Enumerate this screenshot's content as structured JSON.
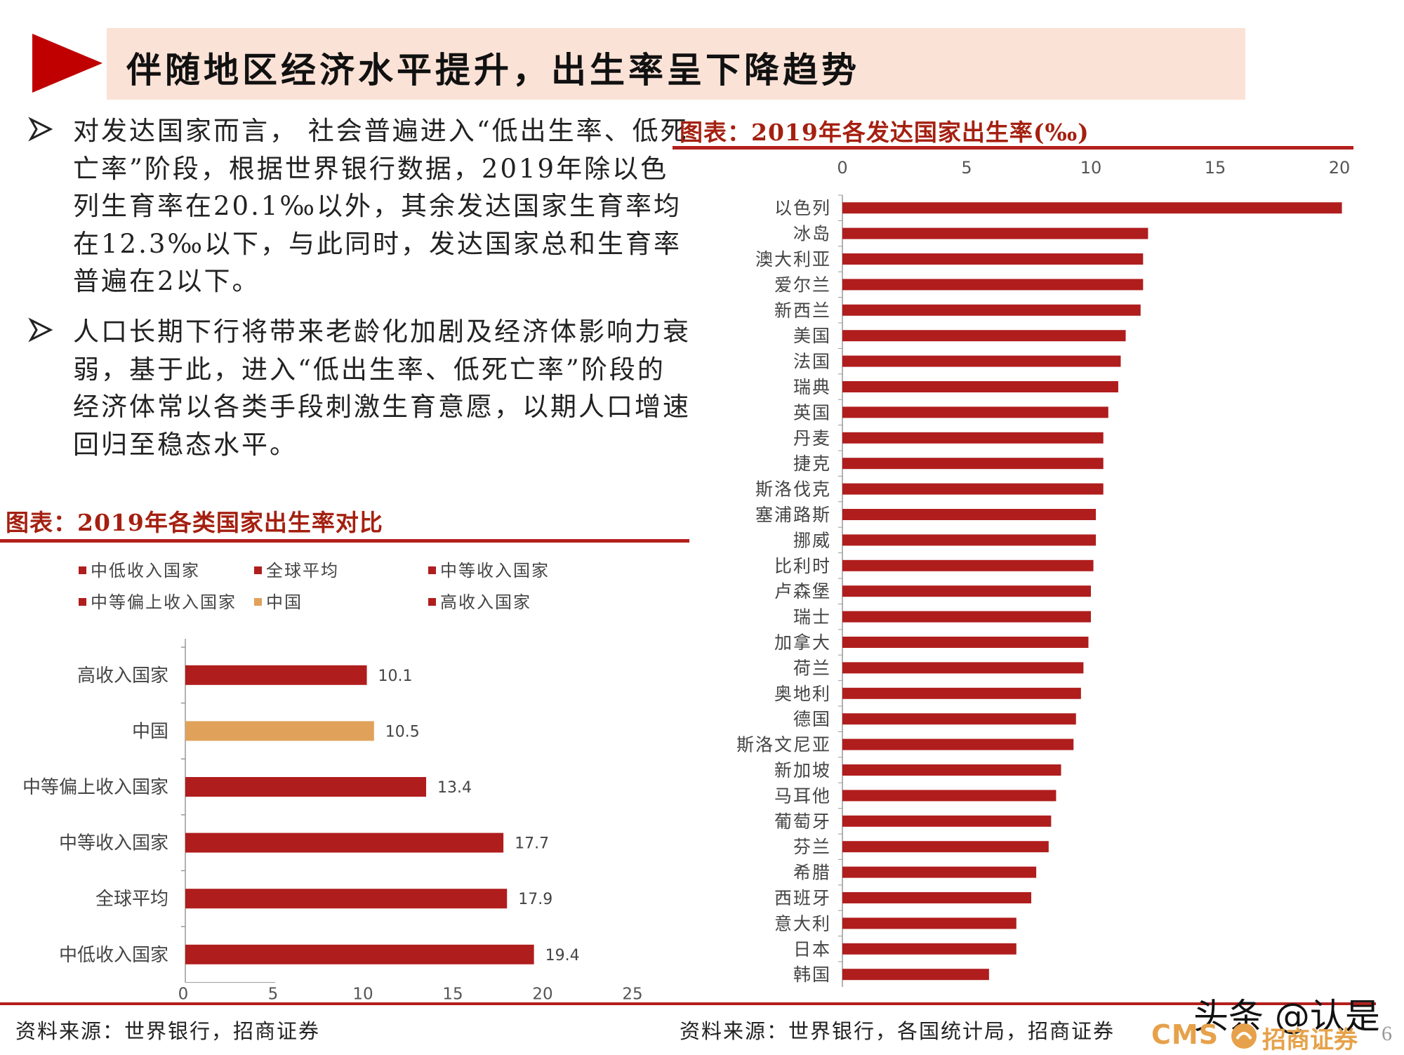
{
  "page": {
    "title": "伴随地区经济水平提升，出生率呈下降趋势",
    "bullets": [
      "对发达国家而言， 社会普遍进入“低出生率、低死亡率”阶段，根据世界银行数据，2019年除以色列生育率在20.1‰以外，其余发达国家生育率均在12.3‰以下，与此同时，发达国家总和生育率普遍在2以下。",
      "人口长期下行将带来老龄化加剧及经济体影响力衰弱，基于此，进入“低出生率、低死亡率”阶段的经济体常以各类手段刺激生育意愿，以期人口增速回归至稳态水平。"
    ],
    "page_number": "6",
    "watermark": "头条 @认是",
    "logo_text": "CMS",
    "logo_cn": "招商证券"
  },
  "colors": {
    "bar_red": "#b01d1d",
    "china_orange": "#e0a25a",
    "accent": "#b3201c",
    "band": "#fbe2d6"
  },
  "chart_data": [
    {
      "type": "bar",
      "orientation": "horizontal",
      "title": "图表：2019年各类国家出生率对比",
      "source": "资料来源：世界银行，招商证券",
      "legend": [
        "中低收入国家",
        "全球平均",
        "中等收入国家",
        "中等偏上收入国家",
        "中国",
        "高收入国家"
      ],
      "categories": [
        "高收入国家",
        "中国",
        "中等偏上收入国家",
        "中等收入国家",
        "全球平均",
        "中低收入国家"
      ],
      "values": [
        10.1,
        10.5,
        13.4,
        17.7,
        17.9,
        19.4
      ],
      "value_labels": [
        "10.1",
        "10.5",
        "13.4",
        "17.7",
        "17.9",
        "19.4"
      ],
      "highlight": "中国",
      "xlim": [
        0,
        25
      ],
      "xticks": [
        "0",
        "5",
        "10",
        "15",
        "20",
        "25"
      ],
      "data_labels": true
    },
    {
      "type": "bar",
      "orientation": "horizontal",
      "title": "图表：2019年各发达国家出生率(‰)",
      "source": "资料来源：世界银行，各国统计局，招商证券",
      "categories": [
        "以色列",
        "冰岛",
        "澳大利亚",
        "爱尔兰",
        "新西兰",
        "美国",
        "法国",
        "瑞典",
        "英国",
        "丹麦",
        "捷克",
        "斯洛伐克",
        "塞浦路斯",
        "挪威",
        "比利时",
        "卢森堡",
        "瑞士",
        "加拿大",
        "荷兰",
        "奥地利",
        "德国",
        "斯洛文尼亚",
        "新加坡",
        "马耳他",
        "葡萄牙",
        "芬兰",
        "希腊",
        "西班牙",
        "意大利",
        "日本",
        "韩国"
      ],
      "values": [
        20.1,
        12.3,
        12.1,
        12.1,
        12.0,
        11.4,
        11.2,
        11.1,
        10.7,
        10.5,
        10.5,
        10.5,
        10.2,
        10.2,
        10.1,
        10.0,
        10.0,
        9.9,
        9.7,
        9.6,
        9.4,
        9.3,
        8.8,
        8.6,
        8.4,
        8.3,
        7.8,
        7.6,
        7.0,
        7.0,
        5.9
      ],
      "xlim": [
        0,
        20
      ],
      "xticks": [
        "0",
        "5",
        "10",
        "15",
        "20"
      ],
      "axis_position": "top"
    }
  ]
}
